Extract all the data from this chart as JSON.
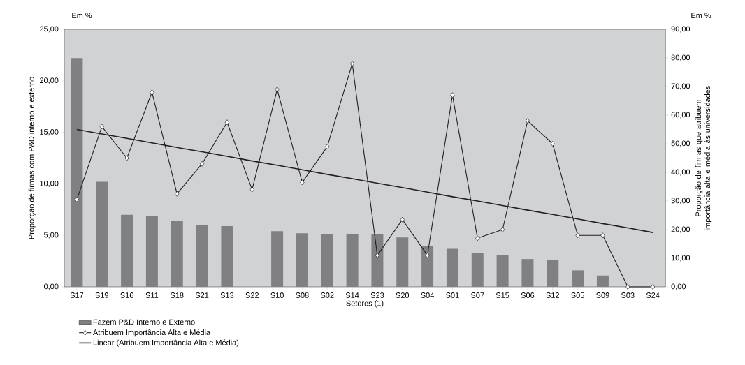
{
  "chart_data": {
    "type": "bar",
    "categories": [
      "S17",
      "S19",
      "S16",
      "S11",
      "S18",
      "S21",
      "S13",
      "S22",
      "S10",
      "S08",
      "S02",
      "S14",
      "S23",
      "S20",
      "S04",
      "S01",
      "S07",
      "S15",
      "S06",
      "S12",
      "S05",
      "S09",
      "S03",
      "S24"
    ],
    "series": [
      {
        "name": "Fazem P&D Interno e Externo",
        "color": "#808083",
        "values": [
          22.2,
          10.2,
          7.0,
          6.9,
          6.4,
          6.0,
          5.9,
          0,
          5.4,
          5.2,
          5.1,
          5.1,
          5.1,
          4.8,
          4.0,
          3.7,
          3.3,
          3.1,
          2.7,
          2.6,
          1.6,
          1.1,
          0,
          0
        ]
      },
      {
        "name": "Atribuem Importância Alta e Média",
        "type": "line",
        "axis": "y2",
        "color": "#231f20",
        "marker": "diamond",
        "values": [
          30.5,
          56,
          45,
          68,
          32.5,
          43,
          57.5,
          34,
          69,
          36.5,
          49,
          78,
          11,
          23.5,
          11,
          67,
          17,
          20,
          58,
          50,
          18,
          18,
          0,
          0
        ]
      },
      {
        "name": "Linear (Atribuem Importância Alta e Média)",
        "type": "line",
        "axis": "y2",
        "color": "#231f20",
        "marker": "none",
        "values": [
          55,
          53.4,
          51.9,
          50.3,
          48.7,
          47.2,
          45.6,
          44.0,
          42.5,
          40.9,
          39.3,
          37.8,
          36.2,
          34.7,
          33.1,
          31.5,
          30.0,
          28.4,
          26.8,
          25.3,
          23.7,
          22.1,
          20.6,
          19
        ]
      }
    ],
    "xlabel": "Setores (1)",
    "ylabel": "Proporção de firmas com P&D interno e externo",
    "y2label": "Proporção de firmas que atribuem importância alta e média às universidades",
    "ylim": [
      0,
      25
    ],
    "yticks": [
      {
        "value": 0,
        "label": "0,00"
      },
      {
        "value": 5,
        "label": "5,00"
      },
      {
        "value": 10,
        "label": "10,00"
      },
      {
        "value": 15,
        "label": "15,00"
      },
      {
        "value": 20,
        "label": "20,00"
      },
      {
        "value": 25,
        "label": "25,00"
      }
    ],
    "y2lim": [
      0,
      90
    ],
    "y2ticks": [
      {
        "value": 0,
        "label": "0,00"
      },
      {
        "value": 10,
        "label": "10,00"
      },
      {
        "value": 20,
        "label": "20,00"
      },
      {
        "value": 30,
        "label": "30,00"
      },
      {
        "value": 40,
        "label": "40,00"
      },
      {
        "value": 50,
        "label": "50,00"
      },
      {
        "value": 60,
        "label": "60,00"
      },
      {
        "value": 70,
        "label": "70,00"
      },
      {
        "value": 80,
        "label": "80,00"
      },
      {
        "value": 90,
        "label": "90,00"
      }
    ],
    "annotations": [
      "Em %",
      "Em %"
    ],
    "legend": "bottom"
  }
}
